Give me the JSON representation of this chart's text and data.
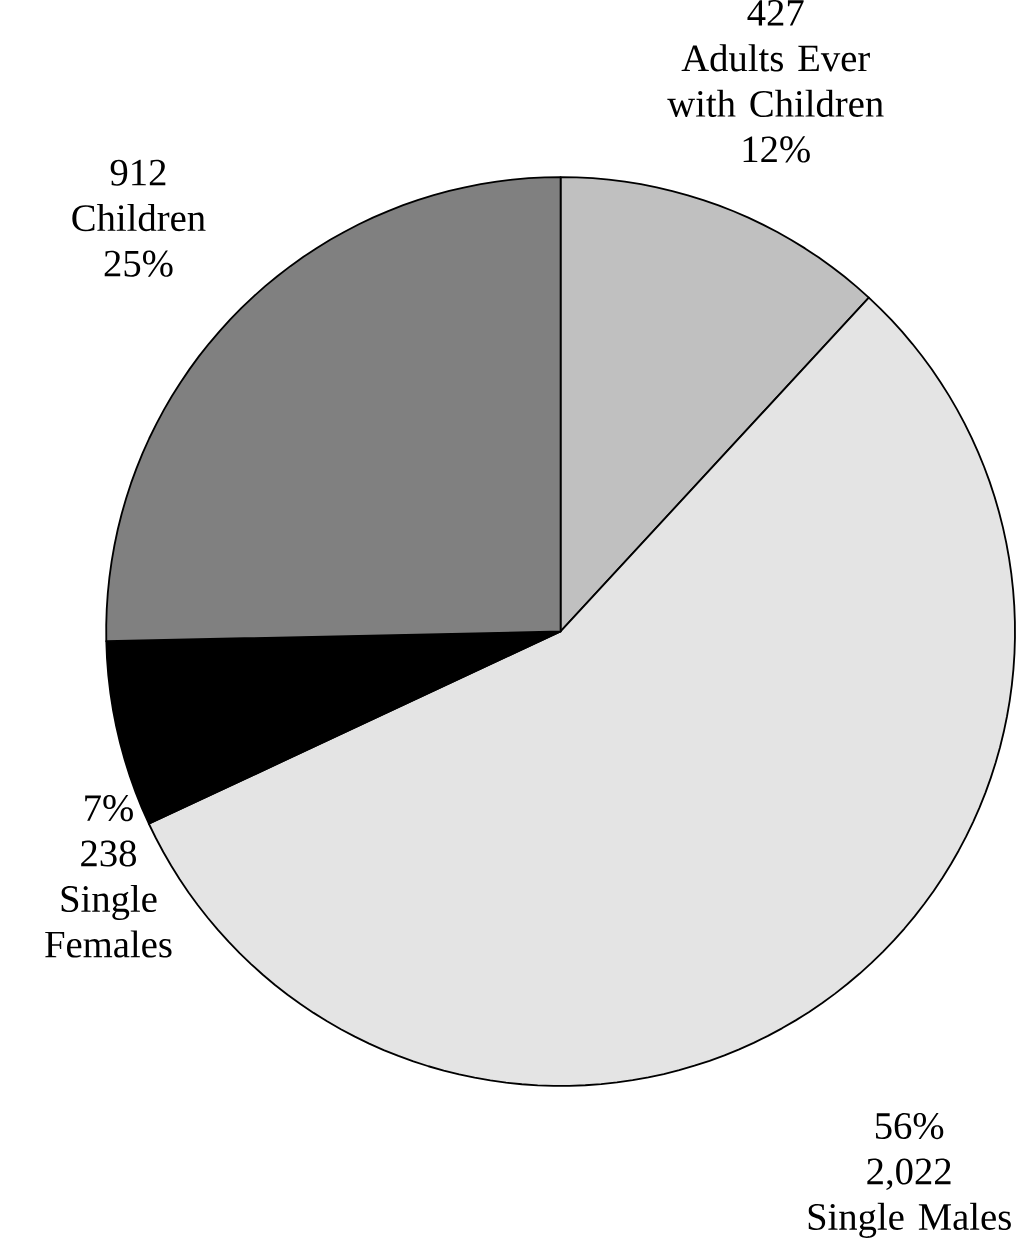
{
  "chart_data": {
    "type": "pie",
    "categories": [
      "Adults Ever with Children",
      "Single Males",
      "Single Females",
      "Children"
    ],
    "values": [
      427,
      2022,
      238,
      912
    ],
    "value_labels": [
      "427",
      "2,022",
      "238",
      "912"
    ],
    "colors": [
      "#c0c0c0",
      "#e4e4e4",
      "#000000",
      "#808080"
    ],
    "annotations": [
      "12%",
      "56%",
      "7%",
      "25%"
    ]
  }
}
